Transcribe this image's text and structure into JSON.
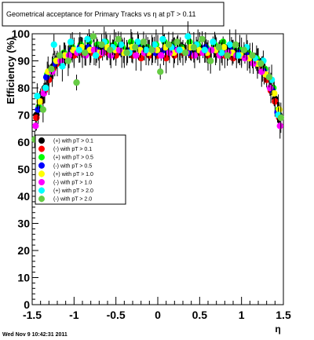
{
  "chart_data": {
    "type": "scatter",
    "title": "Geometrical acceptance for Primary Tracks vs    η at pT > 0.11",
    "xlabel": "η",
    "ylabel": "Efficiency (%)",
    "xlim": [
      -1.5,
      1.5
    ],
    "ylim": [
      0,
      100
    ],
    "x_ticks": [
      "-1.5",
      "-1",
      "-0.5",
      "0",
      "0.5",
      "1",
      "1.5"
    ],
    "y_ticks": [
      "0",
      "10",
      "20",
      "30",
      "40",
      "50",
      "60",
      "70",
      "80",
      "90",
      "100"
    ],
    "grid": false,
    "legend_position": "left-middle",
    "footer": "Wed Nov  9 10:42:31 2011",
    "series": [
      {
        "name": "(+) with pT > 0.1",
        "color": "#000000",
        "symbol": "circle",
        "x": [
          -1.45,
          -1.4,
          -1.35,
          -1.3,
          -1.25,
          -1.2,
          -1.1,
          -1.0,
          -0.9,
          -0.8,
          -0.7,
          -0.6,
          -0.5,
          -0.4,
          -0.3,
          -0.2,
          -0.1,
          0.0,
          0.1,
          0.2,
          0.3,
          0.4,
          0.5,
          0.6,
          0.7,
          0.8,
          0.9,
          1.0,
          1.1,
          1.2,
          1.25,
          1.3,
          1.35,
          1.4,
          1.45
        ],
        "y": [
          70,
          76,
          80,
          84,
          88,
          90,
          92,
          93,
          94,
          94,
          95,
          94,
          95,
          94,
          94,
          95,
          94,
          94,
          95,
          94,
          95,
          94,
          95,
          94,
          94,
          95,
          94,
          93,
          92,
          90,
          88,
          84,
          80,
          76,
          70
        ]
      },
      {
        "name": "(-) with pT > 0.1",
        "color": "#ff0000",
        "symbol": "circle",
        "x": [
          -1.45,
          -1.4,
          -1.35,
          -1.3,
          -1.25,
          -1.2,
          -1.1,
          -1.0,
          -0.9,
          -0.8,
          -0.7,
          -0.6,
          -0.5,
          -0.4,
          -0.3,
          -0.2,
          -0.1,
          0.0,
          0.1,
          0.2,
          0.3,
          0.4,
          0.5,
          0.6,
          0.7,
          0.8,
          0.9,
          1.0,
          1.1,
          1.2,
          1.25,
          1.3,
          1.35,
          1.4,
          1.45
        ],
        "y": [
          69,
          75,
          79,
          83,
          87,
          89,
          91,
          92,
          93,
          93,
          92,
          93,
          92,
          93,
          92,
          91,
          92,
          92,
          91,
          92,
          93,
          92,
          93,
          92,
          93,
          92,
          91,
          92,
          91,
          89,
          87,
          83,
          79,
          75,
          69
        ]
      },
      {
        "name": "(+) with pT > 0.5",
        "color": "#00ff00",
        "symbol": "circle",
        "x": [
          -1.42,
          -1.32,
          -1.22,
          -1.12,
          -1.02,
          -0.92,
          -0.82,
          -0.72,
          -0.62,
          -0.52,
          -0.42,
          -0.32,
          -0.22,
          -0.12,
          -0.02,
          0.08,
          0.18,
          0.28,
          0.38,
          0.48,
          0.58,
          0.68,
          0.78,
          0.88,
          0.98,
          1.08,
          1.18,
          1.28,
          1.38,
          1.44
        ],
        "y": [
          73,
          85,
          90,
          93,
          95,
          96,
          97,
          96,
          97,
          96,
          95,
          97,
          96,
          95,
          96,
          97,
          96,
          95,
          97,
          96,
          95,
          96,
          97,
          95,
          94,
          93,
          91,
          87,
          80,
          72
        ]
      },
      {
        "name": "(-) with pT > 0.5",
        "color": "#0000ff",
        "symbol": "circle",
        "x": [
          -1.43,
          -1.33,
          -1.23,
          -1.13,
          -1.03,
          -0.93,
          -0.83,
          -0.73,
          -0.63,
          -0.53,
          -0.43,
          -0.33,
          -0.23,
          -0.13,
          -0.03,
          0.07,
          0.17,
          0.27,
          0.37,
          0.47,
          0.57,
          0.67,
          0.77,
          0.87,
          0.97,
          1.07,
          1.17,
          1.27,
          1.37,
          1.43
        ],
        "y": [
          72,
          84,
          89,
          92,
          94,
          95,
          95,
          94,
          95,
          94,
          93,
          94,
          95,
          94,
          93,
          94,
          95,
          94,
          93,
          94,
          95,
          94,
          93,
          94,
          93,
          92,
          90,
          86,
          79,
          71
        ]
      },
      {
        "name": "(+) with pT > 1.0",
        "color": "#ffff00",
        "symbol": "circle",
        "x": [
          -1.41,
          -1.31,
          -1.21,
          -1.11,
          -1.01,
          -0.91,
          -0.81,
          -0.71,
          -0.61,
          -0.51,
          -0.41,
          -0.31,
          -0.21,
          -0.11,
          -0.01,
          0.09,
          0.19,
          0.29,
          0.39,
          0.49,
          0.59,
          0.69,
          0.79,
          0.89,
          0.99,
          1.09,
          1.19,
          1.29,
          1.39,
          1.45
        ],
        "y": [
          75,
          86,
          90,
          92,
          94,
          95,
          94,
          93,
          95,
          94,
          93,
          95,
          94,
          93,
          94,
          95,
          93,
          94,
          95,
          94,
          93,
          94,
          95,
          93,
          92,
          91,
          89,
          85,
          78,
          72
        ]
      },
      {
        "name": "(-) with pT > 1.0",
        "color": "#ff00ff",
        "symbol": "circle",
        "x": [
          -1.46,
          -1.36,
          -1.26,
          -1.16,
          -1.06,
          -0.96,
          -0.86,
          -0.76,
          -0.66,
          -0.56,
          -0.46,
          -0.36,
          -0.26,
          -0.16,
          -0.06,
          0.04,
          0.14,
          0.24,
          0.34,
          0.44,
          0.54,
          0.64,
          0.74,
          0.84,
          0.94,
          1.04,
          1.14,
          1.24,
          1.34,
          1.46
        ],
        "y": [
          66,
          78,
          86,
          90,
          92,
          93,
          92,
          94,
          93,
          92,
          94,
          93,
          92,
          93,
          94,
          92,
          93,
          94,
          93,
          92,
          93,
          94,
          92,
          93,
          92,
          91,
          89,
          86,
          80,
          66
        ]
      },
      {
        "name": "(+) with pT > 2.0",
        "color": "#00ffff",
        "symbol": "circle",
        "x": [
          -1.44,
          -1.34,
          -1.24,
          -1.14,
          -1.04,
          -0.94,
          -0.84,
          -0.74,
          -0.64,
          -0.54,
          -0.44,
          -0.34,
          -0.24,
          -0.14,
          -0.04,
          0.06,
          0.16,
          0.26,
          0.36,
          0.46,
          0.56,
          0.66,
          0.76,
          0.86,
          0.96,
          1.06,
          1.16,
          1.26,
          1.36,
          1.44
        ],
        "y": [
          77,
          80,
          96,
          88,
          97,
          94,
          98,
          92,
          97,
          95,
          96,
          93,
          97,
          94,
          96,
          98,
          95,
          94,
          99,
          96,
          94,
          97,
          93,
          96,
          92,
          95,
          91,
          90,
          83,
          70
        ]
      },
      {
        "name": "(-) with pT > 2.0",
        "color": "#66cc44",
        "symbol": "circle",
        "x": [
          -1.47,
          -1.37,
          -1.27,
          -1.17,
          -1.07,
          -0.97,
          -0.87,
          -0.77,
          -0.67,
          -0.57,
          -0.47,
          -0.37,
          -0.27,
          -0.17,
          -0.07,
          0.03,
          0.13,
          0.23,
          0.33,
          0.43,
          0.53,
          0.63,
          0.73,
          0.83,
          0.93,
          1.03,
          1.13,
          1.23,
          1.33,
          1.47
        ],
        "y": [
          61,
          72,
          87,
          92,
          90,
          82,
          93,
          99,
          96,
          94,
          98,
          93,
          95,
          97,
          94,
          86,
          96,
          97,
          93,
          95,
          98,
          90,
          95,
          92,
          96,
          94,
          92,
          89,
          84,
          69
        ]
      }
    ]
  }
}
